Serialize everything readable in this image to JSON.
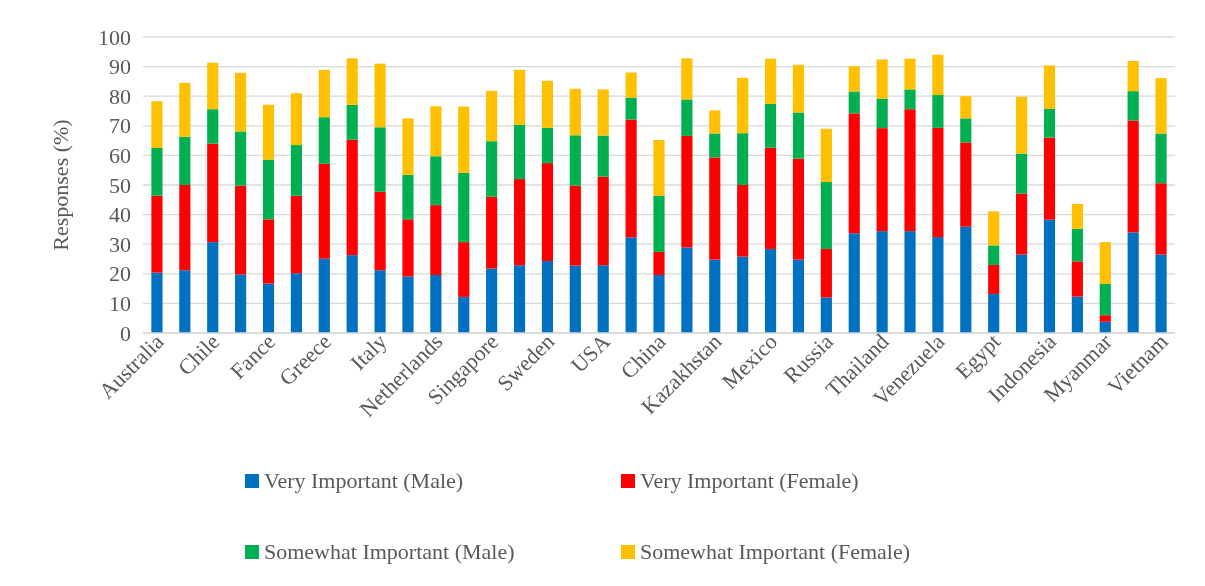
{
  "chart_data": {
    "type": "bar",
    "stacked": true,
    "ylabel": "Responses (%)",
    "categories": [
      "Australia",
      null,
      "Chile",
      null,
      "Fance",
      null,
      "Greece",
      null,
      "Italy",
      null,
      "Netherlands",
      null,
      "Singapore",
      null,
      "Sweden",
      null,
      "USA",
      null,
      "China",
      null,
      "Kazakhstan",
      null,
      "Mexico",
      null,
      "Russia",
      null,
      "Thailand",
      null,
      "Venezuela",
      null,
      "Egypt",
      null,
      "Indonesia",
      null,
      "Myanmar",
      null,
      "Vietnam"
    ],
    "ylim": [
      0,
      100
    ],
    "yticks": [
      0,
      10,
      20,
      30,
      40,
      50,
      60,
      70,
      80,
      90,
      100
    ],
    "grid": "y",
    "legend": "bottom",
    "series": [
      {
        "name": "Very Important (Male)",
        "color": "#0070c0",
        "values": [
          20.4,
          21.2,
          30.7,
          19.8,
          16.7,
          20.2,
          25.1,
          26.3,
          21.2,
          19.1,
          19.6,
          12.2,
          21.8,
          22.9,
          24.3,
          22.8,
          22.9,
          32.3,
          19.6,
          28.9,
          24.8,
          25.8,
          28.4,
          24.8,
          12.0,
          33.7,
          34.4,
          34.4,
          32.4,
          35.9,
          13.2,
          26.5,
          38.3,
          12.3,
          3.8,
          34.0,
          26.5
        ]
      },
      {
        "name": "Very Important (Female)",
        "color": "#ff0000",
        "values": [
          26.0,
          28.8,
          33.3,
          30.0,
          21.7,
          26.2,
          32.1,
          39.0,
          26.5,
          19.3,
          23.6,
          18.5,
          24.2,
          29.1,
          33.1,
          27.0,
          29.9,
          39.8,
          7.8,
          37.7,
          34.5,
          24.2,
          34.2,
          34.1,
          16.4,
          40.5,
          34.8,
          41.2,
          36.9,
          28.5,
          9.8,
          20.6,
          27.7,
          11.9,
          2.2,
          37.8,
          24.1
        ]
      },
      {
        "name": "Somewhat Important (Male)",
        "color": "#00b050",
        "values": [
          16.1,
          16.3,
          11.6,
          18.3,
          20.2,
          17.1,
          15.7,
          11.8,
          21.8,
          15.0,
          16.5,
          23.4,
          18.8,
          18.3,
          11.9,
          17.0,
          13.9,
          7.4,
          18.9,
          12.3,
          8.1,
          17.5,
          14.8,
          15.6,
          22.6,
          7.4,
          10.0,
          6.7,
          11.1,
          8.1,
          6.6,
          13.5,
          9.8,
          11.0,
          10.6,
          9.9,
          16.8
        ]
      },
      {
        "name": "Somewhat Important (Female)",
        "color": "#ffc000",
        "values": [
          15.8,
          18.2,
          15.7,
          19.8,
          18.5,
          17.5,
          16.0,
          15.7,
          21.5,
          19.1,
          16.9,
          22.4,
          17.0,
          18.6,
          15.9,
          15.7,
          15.6,
          8.5,
          18.9,
          13.9,
          7.8,
          18.7,
          15.3,
          16.1,
          18.0,
          8.5,
          13.2,
          10.4,
          13.6,
          7.5,
          11.5,
          19.2,
          14.6,
          8.4,
          14.1,
          10.2,
          18.7
        ]
      }
    ]
  }
}
